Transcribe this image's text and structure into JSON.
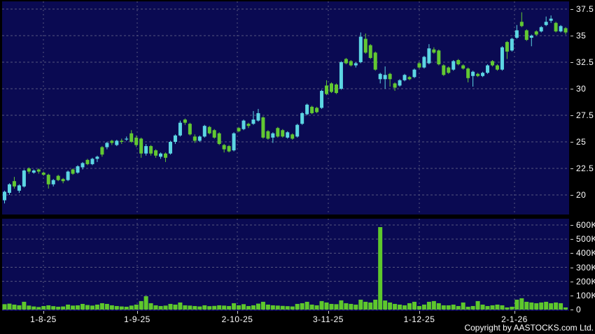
{
  "copyright": "Copyright by AASTOCKS.com Ltd.",
  "colors": {
    "background": "#000000",
    "panel_bg": "#0a0a52",
    "up_candle": "#5cd6e3",
    "down_candle": "#62c832",
    "volume_bar": "#5ec82c",
    "gridline": "#55557f",
    "axis_text": "#ffffff"
  },
  "chart_data": {
    "type": "candlestick",
    "subtype": "price-with-volume",
    "legend_position": "none",
    "grid": true,
    "x_axis": {
      "tick_labels": [
        "1-8-25",
        "1-9-25",
        "2-10-25",
        "3-11-25",
        "1-12-25",
        "2-1-26"
      ],
      "tick_x": [
        62,
        196,
        339,
        469,
        599,
        735
      ]
    },
    "price_axis": {
      "tick_labels": [
        "37.5",
        "35",
        "32.5",
        "30",
        "27.5",
        "25",
        "22.5",
        "20"
      ],
      "tick_values": [
        37.5,
        35,
        32.5,
        30,
        27.5,
        25,
        22.5,
        20
      ],
      "range": [
        19.0,
        38.2
      ],
      "side": "right"
    },
    "volume_axis": {
      "tick_labels": [
        "600K",
        "500K",
        "400K",
        "300K",
        "200K",
        "100K",
        "0"
      ],
      "tick_values_k": [
        600,
        500,
        400,
        300,
        200,
        100,
        0
      ],
      "range_k": [
        0,
        640
      ],
      "side": "right"
    },
    "candles_format": [
      "open",
      "high",
      "low",
      "close",
      "volume_k"
    ],
    "candles": [
      [
        19.5,
        20.4,
        19.2,
        20.3,
        38
      ],
      [
        20.2,
        21.1,
        20.0,
        21.0,
        42
      ],
      [
        21.3,
        21.7,
        20.6,
        20.8,
        35
      ],
      [
        20.4,
        21.0,
        20.2,
        20.9,
        30
      ],
      [
        20.8,
        22.4,
        20.7,
        22.3,
        55
      ],
      [
        22.5,
        22.6,
        22.0,
        22.2,
        28
      ],
      [
        22.1,
        22.4,
        22.0,
        22.3,
        22
      ],
      [
        22.4,
        22.5,
        22.0,
        22.2,
        18
      ],
      [
        22.1,
        22.2,
        21.8,
        21.9,
        25
      ],
      [
        21.9,
        22.0,
        20.6,
        21.0,
        30
      ],
      [
        21.0,
        21.5,
        20.8,
        21.4,
        24
      ],
      [
        21.8,
        21.9,
        21.3,
        21.4,
        20
      ],
      [
        21.5,
        21.6,
        21.1,
        21.3,
        22
      ],
      [
        21.4,
        22.3,
        21.3,
        22.2,
        35
      ],
      [
        22.4,
        22.5,
        21.9,
        22.0,
        28
      ],
      [
        22.1,
        22.8,
        22.0,
        22.7,
        30
      ],
      [
        22.6,
        23.1,
        22.4,
        23.0,
        40
      ],
      [
        23.3,
        23.4,
        22.8,
        22.9,
        32
      ],
      [
        22.9,
        23.5,
        22.8,
        23.4,
        28
      ],
      [
        23.4,
        23.7,
        23.1,
        23.6,
        35
      ],
      [
        24.5,
        24.6,
        23.6,
        23.8,
        45
      ],
      [
        24.5,
        25.0,
        24.3,
        24.9,
        40
      ],
      [
        25.1,
        25.2,
        24.7,
        24.9,
        30
      ],
      [
        24.7,
        25.2,
        24.6,
        25.1,
        25
      ],
      [
        25.1,
        25.3,
        24.8,
        25.0,
        22
      ],
      [
        25.3,
        25.5,
        25.1,
        25.3,
        20
      ],
      [
        25.8,
        26.1,
        24.9,
        25.0,
        28
      ],
      [
        25.4,
        25.6,
        24.5,
        24.7,
        35
      ],
      [
        25.3,
        25.4,
        23.5,
        23.9,
        60
      ],
      [
        23.9,
        24.8,
        23.7,
        24.6,
        95
      ],
      [
        24.6,
        24.7,
        23.7,
        23.9,
        45
      ],
      [
        24.2,
        24.3,
        23.5,
        23.7,
        30
      ],
      [
        23.6,
        24.0,
        23.4,
        23.9,
        25
      ],
      [
        23.9,
        24.0,
        23.1,
        23.5,
        28
      ],
      [
        23.9,
        25.1,
        23.8,
        25.0,
        40
      ],
      [
        25.0,
        25.7,
        24.8,
        25.6,
        35
      ],
      [
        25.6,
        27.0,
        25.5,
        26.8,
        50
      ],
      [
        27.1,
        27.2,
        26.6,
        26.8,
        30
      ],
      [
        26.7,
        26.8,
        25.6,
        25.7,
        28
      ],
      [
        25.5,
        25.7,
        24.9,
        25.1,
        25
      ],
      [
        25.1,
        25.6,
        25.0,
        25.5,
        22
      ],
      [
        25.5,
        26.6,
        25.4,
        26.5,
        30
      ],
      [
        26.4,
        26.5,
        25.7,
        25.8,
        24
      ],
      [
        26.1,
        26.2,
        25.3,
        25.4,
        26
      ],
      [
        25.8,
        25.9,
        24.7,
        24.8,
        30
      ],
      [
        24.7,
        24.8,
        24.0,
        24.3,
        28
      ],
      [
        24.6,
        24.7,
        24.0,
        24.1,
        25
      ],
      [
        24.2,
        25.9,
        24.1,
        25.8,
        45
      ],
      [
        26.3,
        26.4,
        25.9,
        26.0,
        30
      ],
      [
        26.2,
        27.1,
        26.1,
        27.0,
        38
      ],
      [
        26.7,
        26.8,
        26.3,
        26.5,
        25
      ],
      [
        26.7,
        27.9,
        26.6,
        27.1,
        30
      ],
      [
        27.0,
        28.1,
        26.9,
        27.7,
        42
      ],
      [
        27.3,
        27.4,
        25.3,
        25.4,
        55
      ],
      [
        26.0,
        26.1,
        25.2,
        25.3,
        35
      ],
      [
        25.4,
        25.9,
        24.9,
        25.8,
        30
      ],
      [
        26.3,
        26.4,
        25.4,
        25.5,
        28
      ],
      [
        26.1,
        26.2,
        25.4,
        25.5,
        26
      ],
      [
        25.4,
        26.0,
        25.3,
        25.9,
        24
      ],
      [
        25.7,
        25.8,
        25.2,
        25.3,
        22
      ],
      [
        25.5,
        26.7,
        25.4,
        26.6,
        40
      ],
      [
        26.7,
        27.8,
        26.6,
        27.7,
        45
      ],
      [
        27.6,
        28.6,
        27.5,
        28.5,
        55
      ],
      [
        28.3,
        28.4,
        27.6,
        27.7,
        35
      ],
      [
        28.2,
        28.3,
        27.7,
        27.8,
        30
      ],
      [
        28.2,
        29.9,
        28.1,
        29.8,
        60
      ],
      [
        30.3,
        30.8,
        29.4,
        29.5,
        50
      ],
      [
        30.5,
        30.6,
        29.6,
        29.7,
        40
      ],
      [
        30.4,
        30.5,
        29.5,
        29.6,
        38
      ],
      [
        30.0,
        32.6,
        29.9,
        32.5,
        65
      ],
      [
        32.8,
        32.9,
        32.3,
        32.4,
        45
      ],
      [
        32.6,
        32.7,
        32.1,
        32.2,
        40
      ],
      [
        32.2,
        32.5,
        32.0,
        32.4,
        35
      ],
      [
        32.5,
        35.3,
        32.4,
        34.9,
        70
      ],
      [
        34.7,
        35.2,
        33.3,
        33.4,
        55
      ],
      [
        34.1,
        34.2,
        32.8,
        32.9,
        50
      ],
      [
        33.4,
        33.5,
        31.7,
        31.8,
        70
      ],
      [
        30.9,
        31.5,
        30.5,
        31.4,
        585
      ],
      [
        30.9,
        32.1,
        30.0,
        31.3,
        64
      ],
      [
        31.4,
        31.5,
        30.2,
        30.9,
        50
      ],
      [
        30.5,
        30.6,
        29.8,
        30.1,
        40
      ],
      [
        30.3,
        30.9,
        30.2,
        30.8,
        35
      ],
      [
        30.8,
        31.4,
        30.7,
        31.3,
        30
      ],
      [
        31.1,
        31.2,
        30.8,
        30.9,
        45
      ],
      [
        31.1,
        31.9,
        31.0,
        31.8,
        55
      ],
      [
        32.4,
        32.5,
        31.9,
        32.0,
        25
      ],
      [
        32.0,
        33.1,
        31.9,
        33.0,
        35
      ],
      [
        32.4,
        34.2,
        32.3,
        33.8,
        55
      ],
      [
        33.7,
        33.9,
        33.3,
        33.4,
        60
      ],
      [
        33.6,
        33.7,
        32.2,
        32.3,
        45
      ],
      [
        32.2,
        32.3,
        31.2,
        31.3,
        30
      ],
      [
        32.0,
        32.1,
        31.4,
        31.5,
        30
      ],
      [
        31.8,
        32.7,
        31.7,
        32.6,
        35
      ],
      [
        32.7,
        32.8,
        32.2,
        32.3,
        25
      ],
      [
        32.2,
        32.3,
        31.8,
        31.9,
        50
      ],
      [
        31.9,
        32.0,
        30.6,
        31.0,
        20
      ],
      [
        31.2,
        31.7,
        30.2,
        31.6,
        25
      ],
      [
        31.4,
        31.5,
        31.1,
        31.2,
        60
      ],
      [
        31.2,
        31.6,
        31.1,
        31.5,
        35
      ],
      [
        31.5,
        32.3,
        31.4,
        32.2,
        25
      ],
      [
        32.6,
        32.7,
        32.1,
        32.2,
        30
      ],
      [
        32.2,
        32.3,
        31.7,
        31.8,
        35
      ],
      [
        31.8,
        34.0,
        31.7,
        33.9,
        30
      ],
      [
        34.4,
        34.5,
        32.8,
        33.5,
        15
      ],
      [
        33.6,
        34.8,
        33.5,
        34.7,
        20
      ],
      [
        34.8,
        36.0,
        34.7,
        35.5,
        70
      ],
      [
        36.3,
        37.2,
        35.8,
        35.9,
        80
      ],
      [
        35.5,
        35.6,
        34.5,
        34.6,
        55
      ],
      [
        34.8,
        35.1,
        34.0,
        35.0,
        50
      ],
      [
        35.4,
        35.5,
        35.0,
        35.1,
        45
      ],
      [
        35.4,
        35.9,
        35.3,
        35.8,
        50
      ],
      [
        36.0,
        36.8,
        35.9,
        36.3,
        55
      ],
      [
        36.4,
        36.9,
        36.2,
        36.6,
        45
      ],
      [
        36.2,
        36.3,
        35.3,
        35.4,
        50
      ],
      [
        35.4,
        36.0,
        35.3,
        35.9,
        45
      ],
      [
        35.7,
        35.8,
        35.1,
        35.3,
        15
      ]
    ]
  }
}
